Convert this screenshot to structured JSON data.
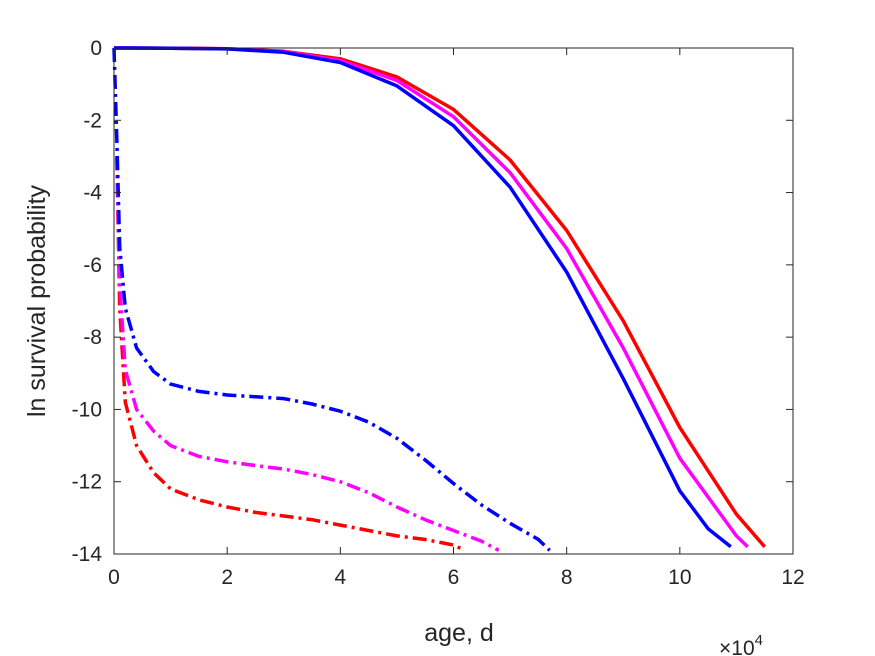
{
  "chart_data": {
    "type": "line",
    "title": "",
    "xlabel": "age, d",
    "ylabel": "ln survival probability",
    "x_exponent_label": "×10",
    "x_exponent_power": "4",
    "xlim": [
      0,
      120000
    ],
    "ylim": [
      -14,
      0
    ],
    "xticks": [
      0,
      20000,
      40000,
      60000,
      80000,
      100000,
      120000
    ],
    "xtick_labels": [
      "0",
      "2",
      "4",
      "6",
      "8",
      "10",
      "12"
    ],
    "yticks": [
      0,
      -2,
      -4,
      -6,
      -8,
      -10,
      -12,
      -14
    ],
    "ytick_labels": [
      "0",
      "-2",
      "-4",
      "-6",
      "-8",
      "-10",
      "-12",
      "-14"
    ],
    "grid": false,
    "series": [
      {
        "color": "#ff0000",
        "style": "solid",
        "points": [
          [
            0,
            0
          ],
          [
            10000,
            -0.005
          ],
          [
            20000,
            -0.02
          ],
          [
            30000,
            -0.09
          ],
          [
            40000,
            -0.3
          ],
          [
            50000,
            -0.8
          ],
          [
            60000,
            -1.7
          ],
          [
            70000,
            -3.1
          ],
          [
            80000,
            -5.05
          ],
          [
            90000,
            -7.55
          ],
          [
            100000,
            -10.5
          ],
          [
            110000,
            -12.9
          ],
          [
            115000,
            -13.8
          ]
        ]
      },
      {
        "color": "#ff00ff",
        "style": "solid",
        "points": [
          [
            0,
            0
          ],
          [
            10000,
            -0.005
          ],
          [
            20000,
            -0.02
          ],
          [
            30000,
            -0.1
          ],
          [
            40000,
            -0.35
          ],
          [
            50000,
            -0.9
          ],
          [
            60000,
            -1.9
          ],
          [
            70000,
            -3.45
          ],
          [
            80000,
            -5.55
          ],
          [
            90000,
            -8.3
          ],
          [
            100000,
            -11.35
          ],
          [
            110000,
            -13.5
          ],
          [
            112000,
            -13.8
          ]
        ]
      },
      {
        "color": "#0000ff",
        "style": "solid",
        "points": [
          [
            0,
            0
          ],
          [
            10000,
            -0.005
          ],
          [
            20000,
            -0.025
          ],
          [
            30000,
            -0.12
          ],
          [
            40000,
            -0.4
          ],
          [
            50000,
            -1.05
          ],
          [
            60000,
            -2.15
          ],
          [
            70000,
            -3.85
          ],
          [
            80000,
            -6.2
          ],
          [
            90000,
            -9.15
          ],
          [
            100000,
            -12.25
          ],
          [
            105000,
            -13.3
          ],
          [
            109000,
            -13.8
          ]
        ]
      },
      {
        "color": "#ff0000",
        "style": "dashdot",
        "points": [
          [
            500,
            -3
          ],
          [
            1000,
            -7.2
          ],
          [
            2000,
            -9.8
          ],
          [
            4000,
            -11.0
          ],
          [
            7000,
            -11.75
          ],
          [
            10000,
            -12.2
          ],
          [
            15000,
            -12.5
          ],
          [
            20000,
            -12.7
          ],
          [
            25000,
            -12.85
          ],
          [
            30000,
            -12.95
          ],
          [
            35000,
            -13.05
          ],
          [
            40000,
            -13.2
          ],
          [
            45000,
            -13.35
          ],
          [
            50000,
            -13.5
          ],
          [
            55000,
            -13.6
          ],
          [
            60000,
            -13.75
          ],
          [
            62000,
            -13.9
          ]
        ]
      },
      {
        "color": "#ff00ff",
        "style": "dashdot",
        "points": [
          [
            500,
            -3
          ],
          [
            1000,
            -6.5
          ],
          [
            2000,
            -8.9
          ],
          [
            4000,
            -10.0
          ],
          [
            7000,
            -10.6
          ],
          [
            10000,
            -11.0
          ],
          [
            15000,
            -11.3
          ],
          [
            20000,
            -11.45
          ],
          [
            25000,
            -11.55
          ],
          [
            30000,
            -11.65
          ],
          [
            35000,
            -11.8
          ],
          [
            40000,
            -12.0
          ],
          [
            45000,
            -12.3
          ],
          [
            50000,
            -12.7
          ],
          [
            55000,
            -13.05
          ],
          [
            60000,
            -13.35
          ],
          [
            65000,
            -13.65
          ],
          [
            68000,
            -13.9
          ]
        ]
      },
      {
        "color": "#0000ff",
        "style": "dashdot",
        "points": [
          [
            0,
            0
          ],
          [
            500,
            -2.5
          ],
          [
            1000,
            -5.5
          ],
          [
            2000,
            -7.2
          ],
          [
            4000,
            -8.3
          ],
          [
            7000,
            -8.95
          ],
          [
            10000,
            -9.3
          ],
          [
            15000,
            -9.5
          ],
          [
            20000,
            -9.6
          ],
          [
            25000,
            -9.65
          ],
          [
            30000,
            -9.7
          ],
          [
            35000,
            -9.85
          ],
          [
            40000,
            -10.05
          ],
          [
            45000,
            -10.35
          ],
          [
            50000,
            -10.8
          ],
          [
            55000,
            -11.4
          ],
          [
            60000,
            -12.05
          ],
          [
            65000,
            -12.65
          ],
          [
            70000,
            -13.15
          ],
          [
            75000,
            -13.6
          ],
          [
            77000,
            -13.9
          ]
        ]
      }
    ]
  }
}
